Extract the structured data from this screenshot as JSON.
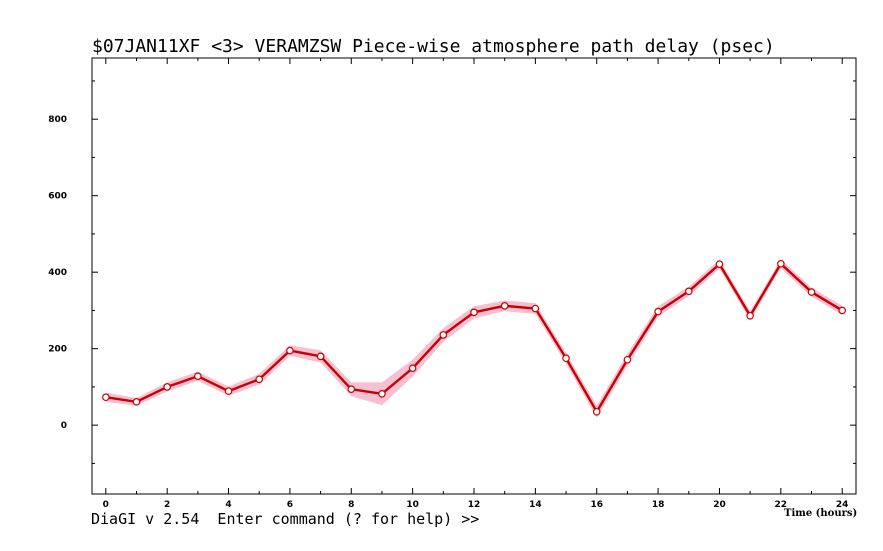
{
  "window": {
    "prompt": "DiaGI v 2.54  Enter command (? for help) >>"
  },
  "chart_data": {
    "type": "line",
    "title": "$07JAN11XF <3>  VERAMZSW  Piece-wise atmosphere path delay (psec)",
    "xlabel": "Time (hours)",
    "ylabel": "",
    "xlim": [
      -0.45,
      24.45
    ],
    "ylim": [
      -180,
      960
    ],
    "xticks": [
      0,
      2,
      4,
      6,
      8,
      10,
      12,
      14,
      16,
      18,
      20,
      22,
      24
    ],
    "yticks": [
      0,
      200,
      400,
      600,
      800
    ],
    "grid": false,
    "colors": {
      "line": "#c80000",
      "band": "#f6bfd2",
      "marker_fill": "#ffffff"
    },
    "x": [
      0,
      1,
      2,
      3,
      4,
      5,
      6,
      7,
      8,
      9,
      10,
      11,
      12,
      13,
      14,
      15,
      16,
      17,
      18,
      19,
      20,
      21,
      22,
      23,
      24
    ],
    "values": [
      73,
      61,
      100,
      128,
      89,
      120,
      195,
      180,
      94,
      82,
      149,
      236,
      295,
      312,
      305,
      175,
      35,
      171,
      297,
      350,
      421,
      286,
      422,
      348,
      300
    ],
    "errors": [
      12,
      10,
      12,
      12,
      12,
      14,
      14,
      16,
      18,
      30,
      22,
      18,
      16,
      14,
      14,
      14,
      16,
      16,
      14,
      12,
      12,
      12,
      12,
      12,
      12
    ]
  }
}
